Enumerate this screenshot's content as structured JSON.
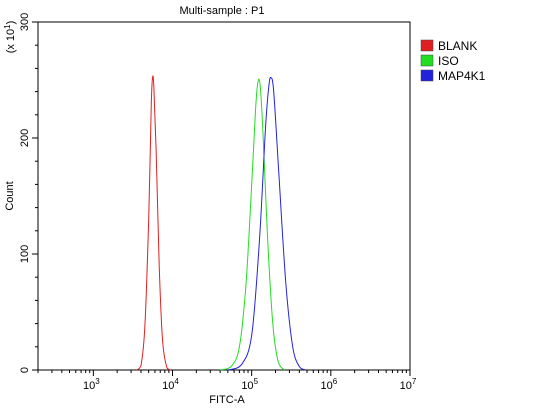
{
  "chart_data": {
    "type": "line",
    "title": "Multi-sample : P1",
    "xlabel": "FITC-A",
    "ylabel": "Count",
    "y_multiplier": "(x 10",
    "y_multiplier_exp": "1",
    "y_multiplier_close": ")",
    "x_scale": "log",
    "xlim": [
      200,
      10000000
    ],
    "ylim": [
      0,
      300
    ],
    "x_ticks": [
      {
        "base": "10",
        "exp": "3",
        "value": 1000
      },
      {
        "base": "10",
        "exp": "4",
        "value": 10000
      },
      {
        "base": "10",
        "exp": "5",
        "value": 100000
      },
      {
        "base": "10",
        "exp": "6",
        "value": 1000000
      },
      {
        "base": "10",
        "exp": "7",
        "value": 10000000
      }
    ],
    "y_ticks": [
      "0",
      "100",
      "200",
      "300"
    ],
    "grid": false,
    "legend_position": "right",
    "series": [
      {
        "name": "BLANK",
        "color": "#e02020",
        "points": [
          [
            3500,
            0
          ],
          [
            4000,
            4
          ],
          [
            4500,
            40
          ],
          [
            5000,
            130
          ],
          [
            5400,
            230
          ],
          [
            5600,
            252
          ],
          [
            5800,
            245
          ],
          [
            6200,
            190
          ],
          [
            6800,
            90
          ],
          [
            7500,
            25
          ],
          [
            8500,
            2
          ],
          [
            9500,
            0
          ]
        ]
      },
      {
        "name": "ISO",
        "color": "#22dd22",
        "points": [
          [
            40000,
            0
          ],
          [
            55000,
            3
          ],
          [
            70000,
            20
          ],
          [
            85000,
            75
          ],
          [
            100000,
            160
          ],
          [
            112000,
            225
          ],
          [
            120000,
            248
          ],
          [
            128000,
            245
          ],
          [
            140000,
            200
          ],
          [
            160000,
            110
          ],
          [
            185000,
            40
          ],
          [
            215000,
            8
          ],
          [
            260000,
            0
          ]
        ]
      },
      {
        "name": "MAP4K1",
        "color": "#2222dd",
        "points": [
          [
            50000,
            0
          ],
          [
            75000,
            5
          ],
          [
            100000,
            30
          ],
          [
            125000,
            110
          ],
          [
            150000,
            210
          ],
          [
            165000,
            245
          ],
          [
            175000,
            252
          ],
          [
            190000,
            240
          ],
          [
            220000,
            170
          ],
          [
            270000,
            75
          ],
          [
            330000,
            20
          ],
          [
            400000,
            3
          ],
          [
            480000,
            0
          ]
        ]
      }
    ]
  }
}
